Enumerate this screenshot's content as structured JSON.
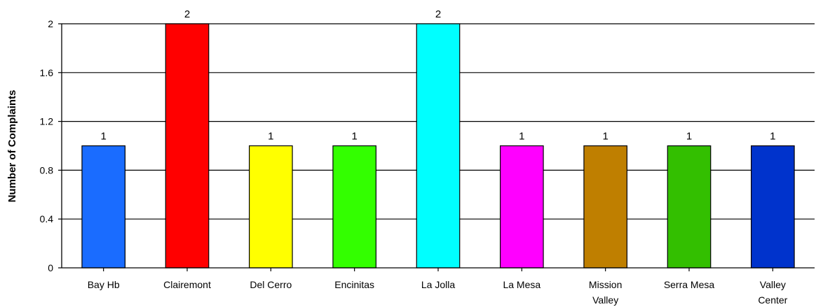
{
  "chart_data": {
    "type": "bar",
    "title": "",
    "xlabel": "",
    "ylabel": "Number of Complaints",
    "ylim": [
      0,
      2
    ],
    "yticks": [
      "0",
      "0.4",
      "0.8",
      "1.2",
      "1.6",
      "2"
    ],
    "grid": true,
    "categories": [
      [
        "Bay Hb"
      ],
      [
        "Clairemont"
      ],
      [
        "Del Cerro"
      ],
      [
        "Encinitas"
      ],
      [
        "La Jolla"
      ],
      [
        "La Mesa"
      ],
      [
        "Mission",
        "Valley"
      ],
      [
        "Serra Mesa"
      ],
      [
        "Valley",
        "Center"
      ]
    ],
    "values": [
      1,
      2,
      1,
      1,
      2,
      1,
      1,
      1,
      1
    ],
    "data_labels": [
      "1",
      "2",
      "1",
      "1",
      "2",
      "1",
      "1",
      "1",
      "1"
    ],
    "colors": [
      "#1a6cff",
      "#ff0000",
      "#ffff00",
      "#33ff00",
      "#00ffff",
      "#ff00ff",
      "#bf7f00",
      "#33bf00",
      "#0033cc"
    ]
  }
}
